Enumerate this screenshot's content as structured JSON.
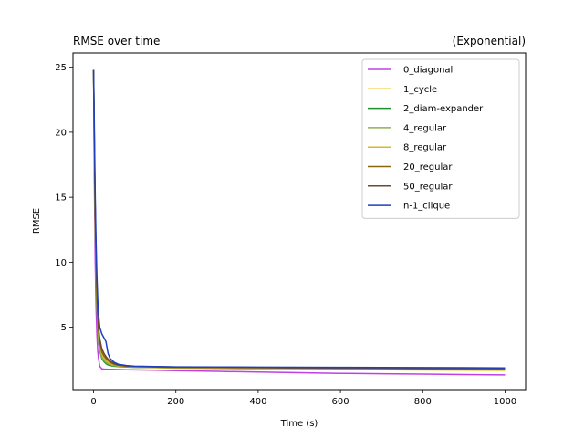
{
  "chart_data": {
    "type": "line",
    "title": "RMSE over time",
    "title_right": "(Exponential)",
    "xlabel": "Time (s)",
    "ylabel": "RMSE",
    "xlim": [
      -50,
      1050
    ],
    "ylim": [
      0.2,
      26.1
    ],
    "xticks": [
      0,
      200,
      400,
      600,
      800,
      1000
    ],
    "yticks": [
      5,
      10,
      15,
      20,
      25
    ],
    "grid": false,
    "legend_position": "top-right",
    "x": [
      0,
      2,
      4,
      6,
      8,
      10,
      12,
      15,
      20,
      25,
      30,
      35,
      40,
      50,
      60,
      80,
      100,
      150,
      200,
      300,
      400,
      500,
      600,
      700,
      800,
      900,
      1000
    ],
    "series": [
      {
        "name": "0_diagonal",
        "color": "#bf40e6",
        "values": [
          24.8,
          16.0,
          10.0,
          6.5,
          4.5,
          3.2,
          2.6,
          2.0,
          1.8,
          1.78,
          1.77,
          1.76,
          1.76,
          1.75,
          1.74,
          1.73,
          1.72,
          1.69,
          1.66,
          1.6,
          1.55,
          1.5,
          1.45,
          1.42,
          1.39,
          1.36,
          1.33
        ]
      },
      {
        "name": "1_cycle",
        "color": "#f2c31f",
        "values": [
          24.8,
          18.0,
          13.0,
          9.5,
          7.0,
          5.5,
          4.3,
          3.5,
          2.9,
          2.6,
          2.4,
          2.25,
          2.15,
          2.05,
          2.0,
          1.95,
          1.92,
          1.88,
          1.85,
          1.82,
          1.79,
          1.77,
          1.75,
          1.73,
          1.71,
          1.69,
          1.67
        ]
      },
      {
        "name": "2_diam-expander",
        "color": "#1f8f2f",
        "values": [
          24.8,
          17.5,
          12.5,
          9.0,
          6.6,
          5.0,
          4.0,
          3.2,
          2.6,
          2.35,
          2.2,
          2.1,
          2.05,
          2.0,
          1.97,
          1.94,
          1.92,
          1.9,
          1.88,
          1.86,
          1.85,
          1.84,
          1.83,
          1.82,
          1.81,
          1.8,
          1.79
        ]
      },
      {
        "name": "4_regular",
        "color": "#8fb04f",
        "values": [
          24.8,
          17.8,
          12.8,
          9.3,
          6.8,
          5.2,
          4.1,
          3.3,
          2.7,
          2.45,
          2.3,
          2.2,
          2.12,
          2.05,
          2.0,
          1.96,
          1.93,
          1.9,
          1.88,
          1.86,
          1.84,
          1.82,
          1.81,
          1.8,
          1.79,
          1.78,
          1.77
        ]
      },
      {
        "name": "8_regular",
        "color": "#d4b82a",
        "values": [
          24.8,
          18.2,
          13.3,
          9.7,
          7.2,
          5.6,
          4.5,
          3.6,
          2.95,
          2.65,
          2.45,
          2.3,
          2.2,
          2.1,
          2.03,
          1.97,
          1.94,
          1.91,
          1.89,
          1.87,
          1.85,
          1.83,
          1.81,
          1.79,
          1.77,
          1.75,
          1.73
        ]
      },
      {
        "name": "20_regular",
        "color": "#8a6410",
        "values": [
          24.8,
          18.5,
          13.8,
          10.2,
          7.6,
          5.9,
          4.7,
          3.8,
          3.1,
          2.8,
          2.6,
          2.45,
          2.3,
          2.15,
          2.07,
          2.0,
          1.97,
          1.94,
          1.92,
          1.9,
          1.88,
          1.86,
          1.84,
          1.82,
          1.8,
          1.78,
          1.76
        ]
      },
      {
        "name": "50_regular",
        "color": "#6b4a2f",
        "values": [
          24.8,
          18.8,
          14.2,
          10.6,
          8.0,
          6.2,
          5.0,
          4.1,
          3.35,
          3.0,
          2.75,
          2.55,
          2.4,
          2.2,
          2.1,
          2.02,
          1.99,
          1.96,
          1.94,
          1.92,
          1.9,
          1.88,
          1.86,
          1.85,
          1.84,
          1.83,
          1.82
        ]
      },
      {
        "name": "n-1_clique",
        "color": "#1f3fbf",
        "values": [
          24.8,
          20.0,
          15.0,
          11.5,
          9.0,
          7.2,
          6.0,
          5.0,
          4.5,
          4.2,
          3.9,
          3.0,
          2.6,
          2.3,
          2.15,
          2.05,
          2.0,
          1.97,
          1.95,
          1.94,
          1.93,
          1.92,
          1.91,
          1.9,
          1.89,
          1.88,
          1.87
        ]
      }
    ]
  }
}
